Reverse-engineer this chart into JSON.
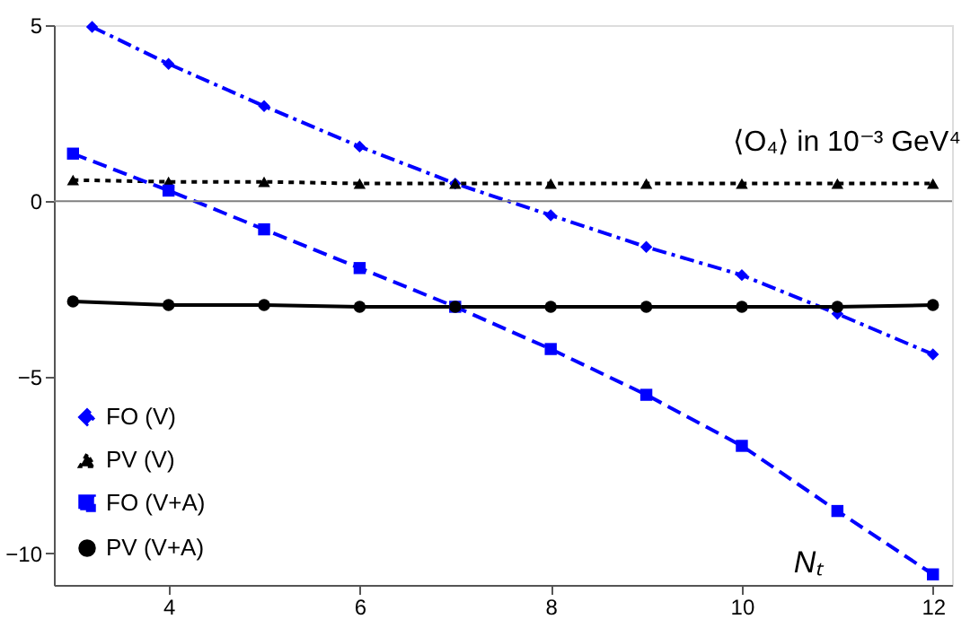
{
  "chart_data": {
    "type": "line",
    "xlabel": "Nₜ",
    "annotations": [
      "⟨O₄⟩ in 10⁻³ GeV⁴"
    ],
    "xlim": [
      2.8,
      12.2
    ],
    "ylim": [
      -10.9,
      5
    ],
    "xticks": [
      4,
      6,
      8,
      10,
      12
    ],
    "yticks": [
      -10,
      -5,
      0,
      5
    ],
    "grid": false,
    "legend": "bottom left",
    "ref_lines": [
      {
        "axis": "y",
        "value": 0,
        "color": "#808080"
      }
    ],
    "series": [
      {
        "name": "FO (V)",
        "color": "#0000ff",
        "line_style": "dashdot",
        "marker": "diamond",
        "x": [
          3.2,
          4,
          5,
          6,
          7,
          8,
          9,
          10,
          11,
          12
        ],
        "values": [
          4.95,
          3.9,
          2.7,
          1.55,
          0.5,
          -0.4,
          -1.3,
          -2.1,
          -3.2,
          -4.35
        ]
      },
      {
        "name": "PV (V)",
        "color": "#000000",
        "line_style": "dotted",
        "marker": "triangle",
        "x": [
          3,
          4,
          5,
          6,
          7,
          8,
          9,
          10,
          11,
          12
        ],
        "values": [
          0.6,
          0.55,
          0.55,
          0.5,
          0.5,
          0.5,
          0.5,
          0.5,
          0.5,
          0.5
        ]
      },
      {
        "name": "FO (V+A)",
        "color": "#0000ff",
        "line_style": "dashed",
        "marker": "square",
        "x": [
          3,
          4,
          5,
          6,
          7,
          8,
          9,
          10,
          11,
          12
        ],
        "values": [
          1.35,
          0.3,
          -0.8,
          -1.9,
          -3.0,
          -4.2,
          -5.5,
          -6.95,
          -8.8,
          -10.6
        ]
      },
      {
        "name": "PV (V+A)",
        "color": "#000000",
        "line_style": "solid",
        "marker": "circle",
        "x": [
          3,
          4,
          5,
          6,
          7,
          8,
          9,
          10,
          11,
          12
        ],
        "values": [
          -2.85,
          -2.95,
          -2.95,
          -3.0,
          -3.0,
          -3.0,
          -3.0,
          -3.0,
          -3.0,
          -2.95
        ]
      }
    ]
  }
}
